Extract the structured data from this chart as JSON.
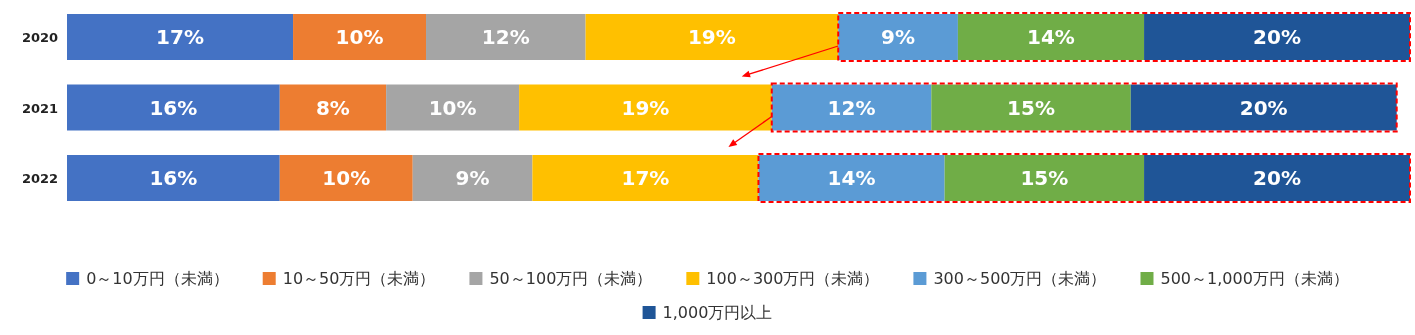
{
  "chart_data": {
    "type": "bar",
    "orientation": "horizontal",
    "stacked": true,
    "legend": "bottom",
    "categories": [
      "2020",
      "2021",
      "2022"
    ],
    "series": [
      {
        "name": "0～10万円（未満）",
        "color": "#4472c4",
        "values": [
          17,
          16,
          16
        ],
        "value_labels": [
          "17%",
          "16%",
          "16%"
        ]
      },
      {
        "name": "10～50万円（未満）",
        "color": "#ed7d31",
        "values": [
          10,
          8,
          10
        ],
        "value_labels": [
          "10%",
          "8%",
          "10%"
        ]
      },
      {
        "name": "50～100万円（未満）",
        "color": "#a5a5a5",
        "values": [
          12,
          10,
          9
        ],
        "value_labels": [
          "12%",
          "10%",
          "9%"
        ]
      },
      {
        "name": "100～300万円（未満）",
        "color": "#ffc000",
        "values": [
          19,
          19,
          17
        ],
        "value_labels": [
          "19%",
          "19%",
          "17%"
        ]
      },
      {
        "name": "300～500万円（未満）",
        "color": "#5b9bd5",
        "values": [
          9,
          12,
          14
        ],
        "value_labels": [
          "9%",
          "12%",
          "14%"
        ]
      },
      {
        "name": "500～1,000万円（未満）",
        "color": "#70ad47",
        "values": [
          14,
          15,
          15
        ],
        "value_labels": [
          "14%",
          "15%",
          "15%"
        ]
      },
      {
        "name": "1,000万円以上",
        "color": "#1f5597",
        "values": [
          20,
          20,
          20
        ],
        "value_labels": [
          "20%",
          "20%",
          "20%"
        ]
      }
    ]
  }
}
